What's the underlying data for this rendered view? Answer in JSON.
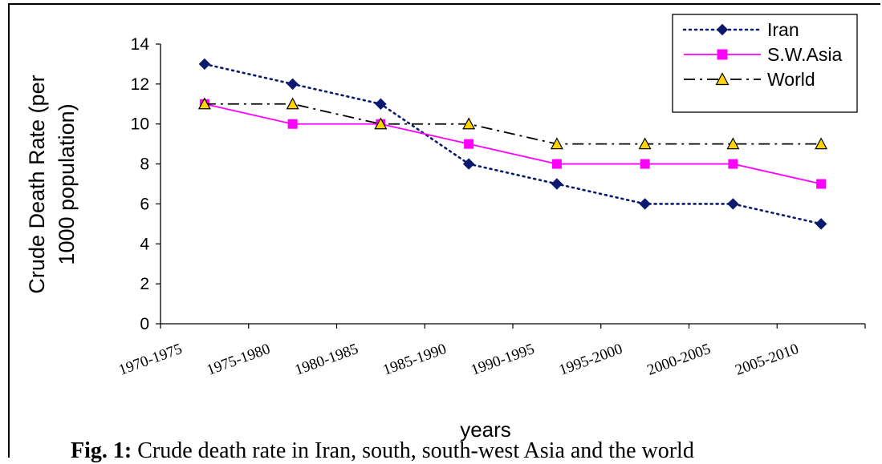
{
  "chart_data": {
    "type": "line",
    "categories": [
      "1970-1975",
      "1975-1980",
      "1980-1985",
      "1985-1990",
      "1990-1995",
      "1995-2000",
      "2000-2005",
      "2005-2010"
    ],
    "series": [
      {
        "name": "Iran",
        "values": [
          13,
          12,
          11,
          8,
          7,
          6,
          6,
          5
        ],
        "color": "#0b1a6e",
        "marker": "diamond",
        "line": "dotted"
      },
      {
        "name": "S.W.Asia",
        "values": [
          11,
          10,
          10,
          9,
          8,
          8,
          8,
          7
        ],
        "color": "#ff00ff",
        "marker": "square",
        "line": "solid"
      },
      {
        "name": "World",
        "values": [
          11,
          11,
          10,
          10,
          9,
          9,
          9,
          9
        ],
        "color": "#000000",
        "marker": "triangle",
        "marker_fill": "#ffd400",
        "line": "dashdot"
      }
    ],
    "xlabel": "years",
    "ylabel_lines": [
      "Crude Death Rate (per",
      "1000 population)"
    ],
    "ylim": [
      0,
      14
    ],
    "yticks": [
      0,
      2,
      4,
      6,
      8,
      10,
      12,
      14
    ],
    "grid": false,
    "legend_position": "top-right"
  },
  "caption": {
    "label": "Fig. 1:",
    "text": "Crude death rate in Iran, south, south-west Asia and the world"
  }
}
